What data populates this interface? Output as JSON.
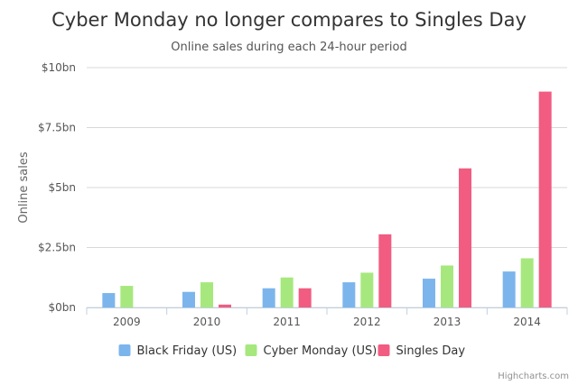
{
  "chart_data": {
    "type": "bar",
    "title": "Cyber Monday no longer compares to Singles Day",
    "subtitle": "Online sales during each 24-hour period",
    "xlabel": "",
    "ylabel": "Online sales",
    "categories": [
      "2009",
      "2010",
      "2011",
      "2012",
      "2013",
      "2014"
    ],
    "ylim": [
      0,
      10
    ],
    "yticks": [
      0,
      2.5,
      5,
      7.5,
      10
    ],
    "ytick_labels": [
      "$0bn",
      "$2.5bn",
      "$5bn",
      "$7.5bn",
      "$10bn"
    ],
    "grid": true,
    "legend_position": "bottom",
    "series": [
      {
        "name": "Black Friday (US)",
        "color": "#7cb5ec",
        "values": [
          0.6,
          0.65,
          0.8,
          1.05,
          1.2,
          1.5
        ]
      },
      {
        "name": "Cyber Monday (US)",
        "color": "#a6e87d",
        "values": [
          0.9,
          1.05,
          1.25,
          1.45,
          1.75,
          2.05
        ]
      },
      {
        "name": "Singles Day",
        "color": "#f15c80",
        "values": [
          0.0,
          0.12,
          0.8,
          3.05,
          5.8,
          9.0
        ]
      }
    ]
  },
  "credits": "Highcharts.com"
}
